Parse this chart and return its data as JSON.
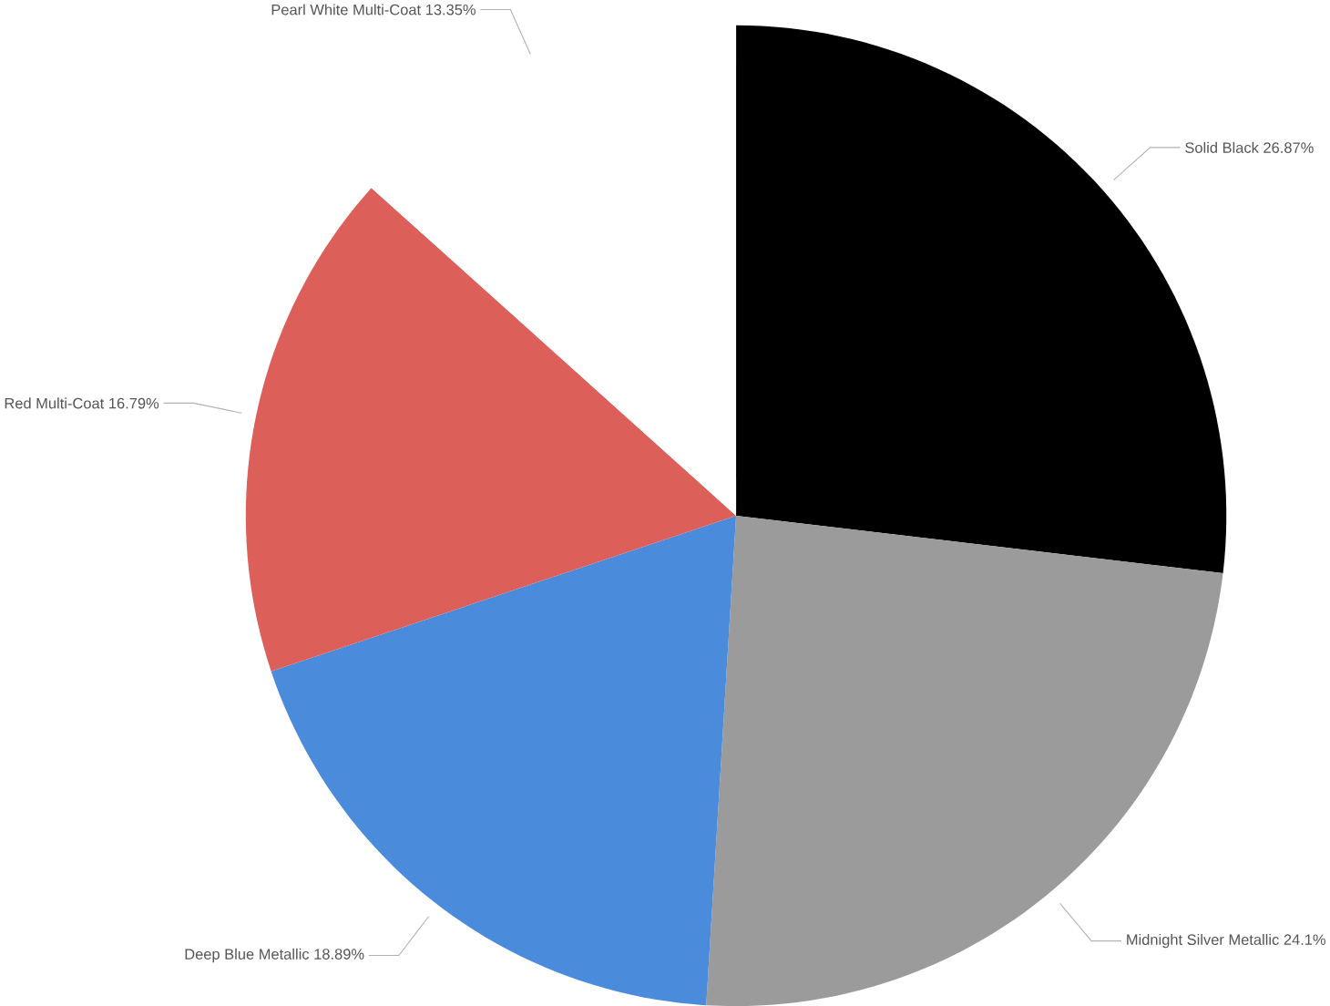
{
  "chart_data": {
    "type": "pie",
    "categories": [
      "Solid Black",
      "Midnight Silver Metallic",
      "Deep Blue Metallic",
      "Red Multi-Coat",
      "Pearl White Multi-Coat"
    ],
    "values": [
      26.87,
      24.1,
      18.89,
      16.79,
      13.35
    ],
    "value_labels": [
      "26.87%",
      "24.1%",
      "18.89%",
      "16.79%",
      "13.35%"
    ],
    "colors": [
      "#000000",
      "#9b9b9b",
      "#4a8bdb",
      "#dd5f5a",
      "#ffffff"
    ]
  }
}
